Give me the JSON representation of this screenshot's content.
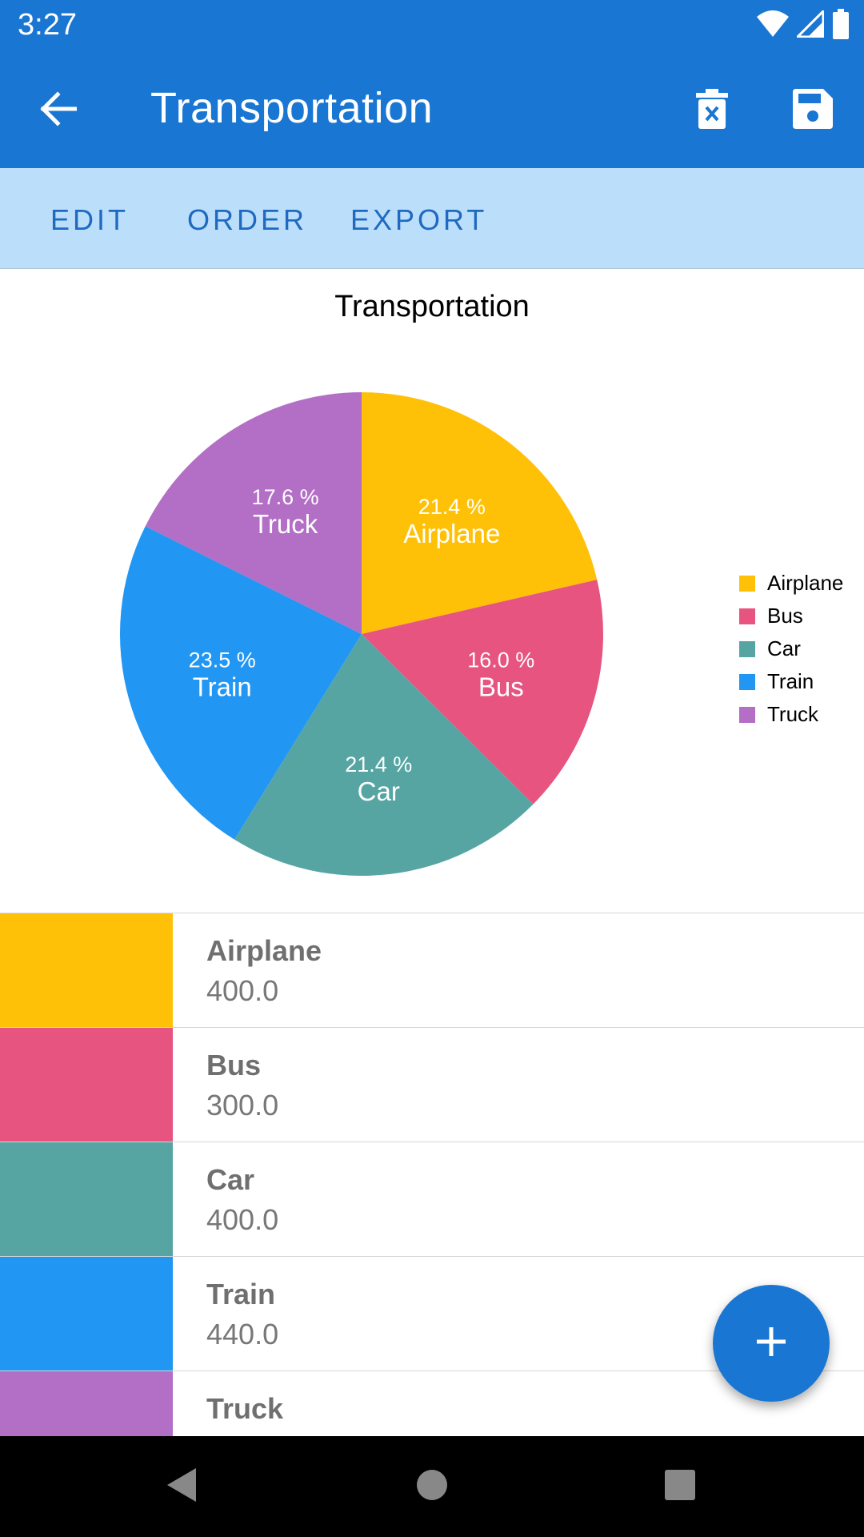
{
  "status_bar": {
    "time": "3:27",
    "icons": [
      "wifi-icon",
      "signal-icon",
      "battery-icon"
    ]
  },
  "app_bar": {
    "title": "Transportation",
    "back_icon": "arrow-left-icon",
    "delete_icon": "delete-icon",
    "save_icon": "save-icon"
  },
  "tabs": [
    {
      "label": "EDIT"
    },
    {
      "label": "ORDER"
    },
    {
      "label": "EXPORT"
    }
  ],
  "chart_data": {
    "type": "pie",
    "title": "Transportation",
    "legend_position": "right",
    "slices": [
      {
        "label": "Airplane",
        "value": 400.0,
        "percent": "21.4 %",
        "color": "#ffc107"
      },
      {
        "label": "Bus",
        "value": 300.0,
        "percent": "16.0 %",
        "color": "#e75480"
      },
      {
        "label": "Car",
        "value": 400.0,
        "percent": "21.4 %",
        "color": "#57a5a3"
      },
      {
        "label": "Train",
        "value": 440.0,
        "percent": "23.5 %",
        "color": "#2196f3"
      },
      {
        "label": "Truck",
        "value": 330.0,
        "percent": "17.6 %",
        "color": "#b36ec6"
      }
    ]
  },
  "list": {
    "items": [
      {
        "name": "Airplane",
        "value": "400.0",
        "color": "#ffc107"
      },
      {
        "name": "Bus",
        "value": "300.0",
        "color": "#e75480"
      },
      {
        "name": "Car",
        "value": "400.0",
        "color": "#57a5a3"
      },
      {
        "name": "Train",
        "value": "440.0",
        "color": "#2196f3"
      },
      {
        "name": "Truck",
        "value": "",
        "color": "#b36ec6"
      }
    ]
  },
  "fab": {
    "icon": "plus-icon"
  },
  "nav_bar": {
    "icons": [
      "nav-back-icon",
      "nav-home-icon",
      "nav-recent-icon"
    ]
  },
  "colors": {
    "primary": "#1976d2",
    "tab_background": "#bbdefb",
    "tab_text": "#1f6ac0"
  }
}
